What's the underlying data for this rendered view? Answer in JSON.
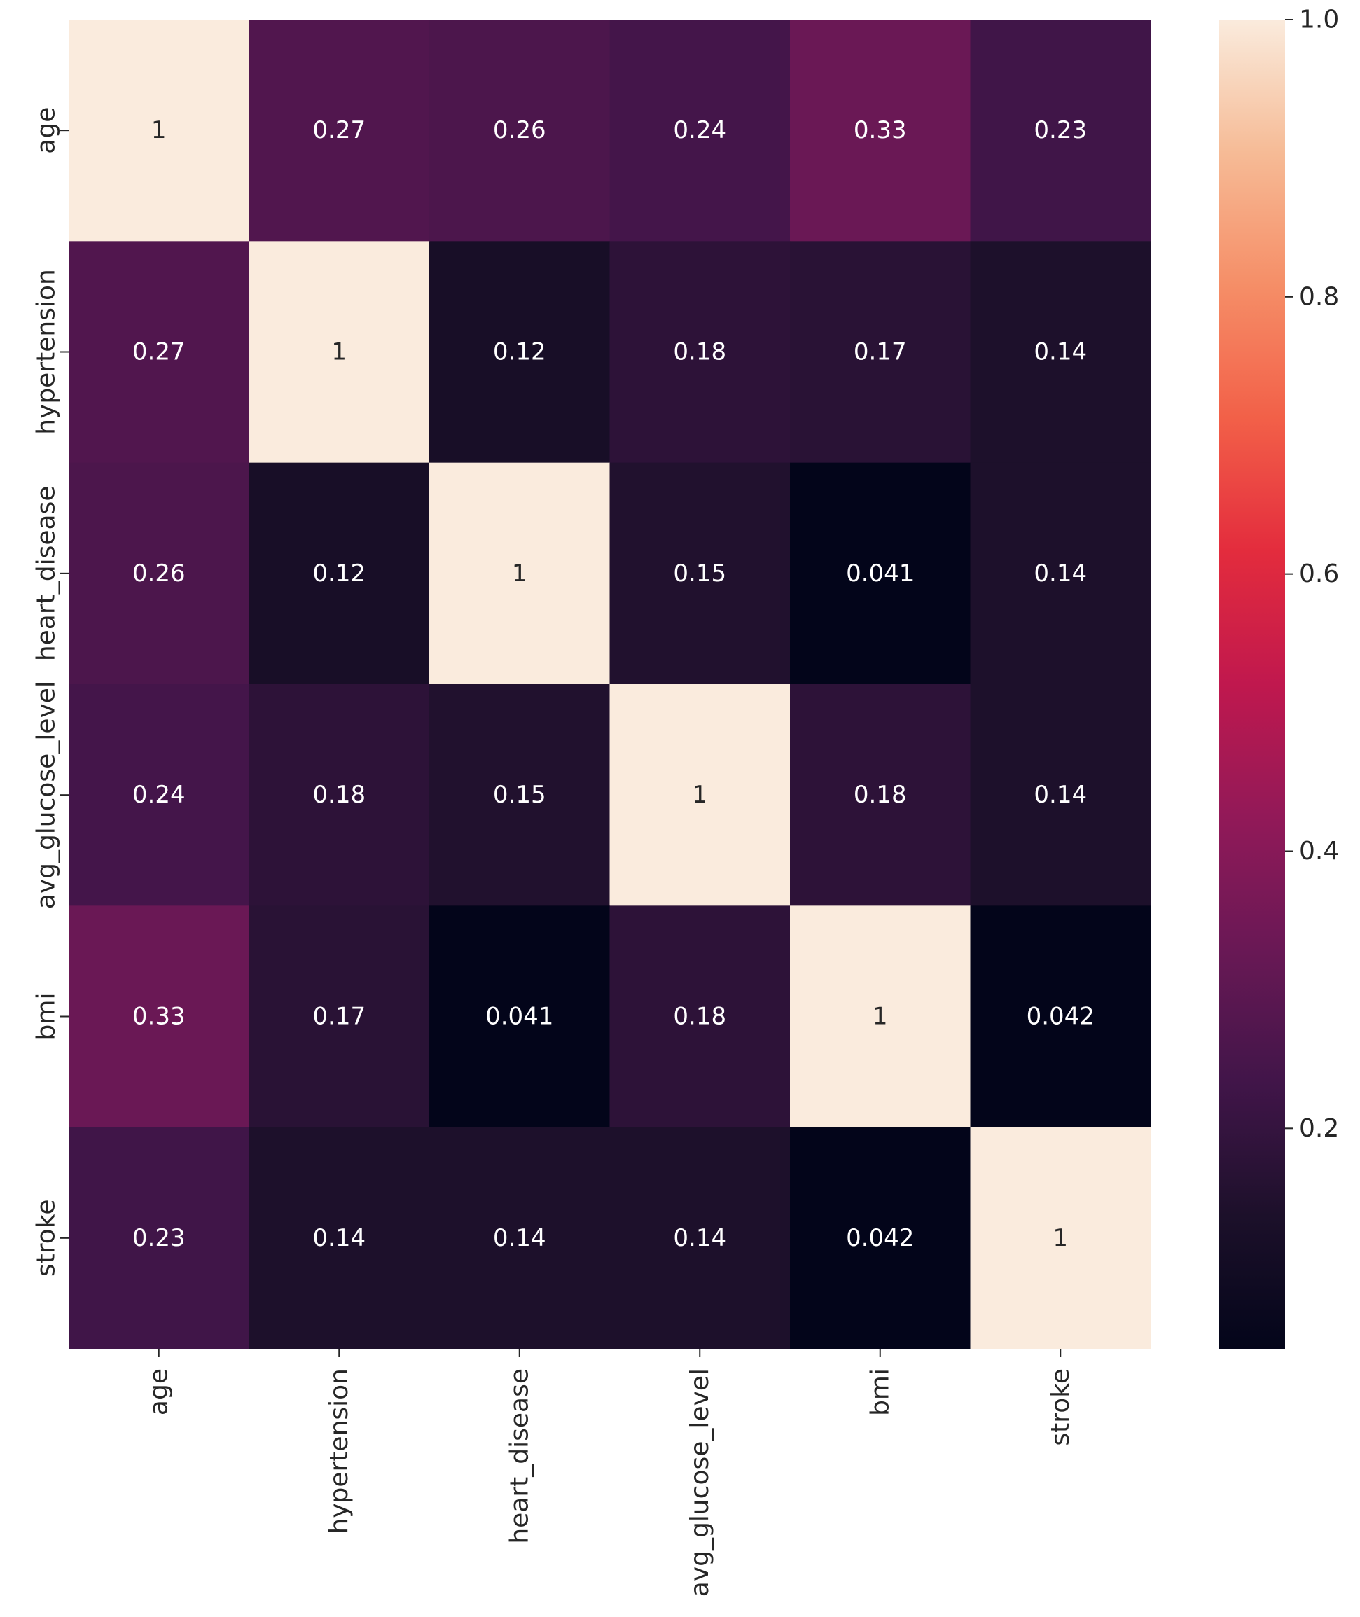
{
  "chart_data": {
    "type": "heatmap",
    "title": "",
    "xlabel": "",
    "ylabel": "",
    "x_labels": [
      "age",
      "hypertension",
      "heart_disease",
      "avg_glucose_level",
      "bmi",
      "stroke"
    ],
    "y_labels": [
      "age",
      "hypertension",
      "heart_disease",
      "avg_glucose_level",
      "bmi",
      "stroke"
    ],
    "matrix": [
      [
        1,
        0.27,
        0.26,
        0.24,
        0.33,
        0.23
      ],
      [
        0.27,
        1,
        0.12,
        0.18,
        0.17,
        0.14
      ],
      [
        0.26,
        0.12,
        1,
        0.15,
        0.041,
        0.14
      ],
      [
        0.24,
        0.18,
        0.15,
        1,
        0.18,
        0.14
      ],
      [
        0.33,
        0.17,
        0.041,
        0.18,
        1,
        0.042
      ],
      [
        0.23,
        0.14,
        0.14,
        0.14,
        0.042,
        1
      ]
    ],
    "annotations": [
      [
        "1",
        "0.27",
        "0.26",
        "0.24",
        "0.33",
        "0.23"
      ],
      [
        "0.27",
        "1",
        "0.12",
        "0.18",
        "0.17",
        "0.14"
      ],
      [
        "0.26",
        "0.12",
        "1",
        "0.15",
        "0.041",
        "0.14"
      ],
      [
        "0.24",
        "0.18",
        "0.15",
        "1",
        "0.18",
        "0.14"
      ],
      [
        "0.33",
        "0.17",
        "0.041",
        "0.18",
        "1",
        "0.042"
      ],
      [
        "0.23",
        "0.14",
        "0.14",
        "0.14",
        "0.042",
        "1"
      ]
    ],
    "colormap": "rocket",
    "colorbar": {
      "vmin": 0.041,
      "vmax": 1.0,
      "ticks": [
        0.2,
        0.4,
        0.6,
        0.8,
        1.0
      ],
      "tick_labels": [
        "0.2",
        "0.4",
        "0.6",
        "0.8",
        "1.0"
      ]
    },
    "legend_position": "right"
  }
}
